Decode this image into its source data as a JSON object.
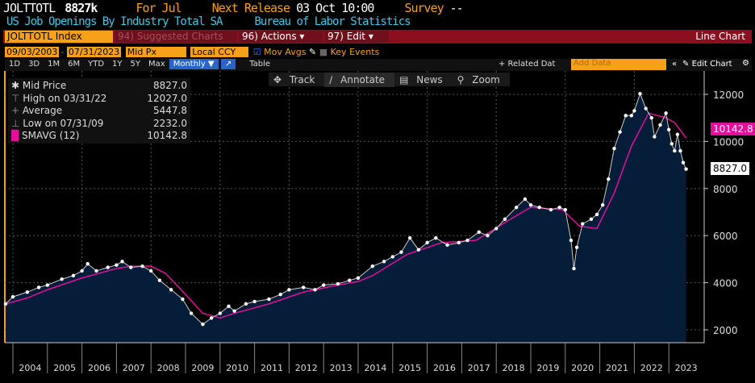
{
  "header": {
    "ticker": "JOLTTOTL",
    "last": "8827k",
    "for_label": "For Jul",
    "next_release_label": "Next Release",
    "next_release": "03 Oct 10:00",
    "survey_label": "Survey",
    "survey": "--",
    "description": "US Job Openings By Industry Total SA",
    "source": "Bureau of Labor Statistics"
  },
  "toolbar": {
    "security": "JOLTTOTL Index",
    "suggested": "94) Suggested Charts",
    "actions": "96) Actions ▾",
    "edit": "97) Edit ▾",
    "chart_type": "Line Chart"
  },
  "controls": {
    "start_date": "09/03/2003",
    "end_date": "07/31/2023",
    "price_field": "Mid Px",
    "currency": "Local CCY",
    "mov_avgs": "Mov Avgs",
    "key_events": "Key Events",
    "periods": [
      "1D",
      "3D",
      "1M",
      "6M",
      "YTD",
      "1Y",
      "5Y",
      "Max"
    ],
    "frequency": "Monthly ▼",
    "table": "Table",
    "related": "+ Related Dat",
    "add_data_placeholder": "Add Data",
    "collapse": "«",
    "edit_chart": "Edit Chart"
  },
  "chart_tools": {
    "track": "Track",
    "annotate": "Annotate",
    "news": "News",
    "zoom": "Zoom"
  },
  "legend": [
    {
      "label": "Mid Price",
      "value": "8827.0"
    },
    {
      "label": "High on 03/31/22",
      "value": "12027.0"
    },
    {
      "label": "Average",
      "value": "5447.8"
    },
    {
      "label": "Low on 07/31/09",
      "value": "2232.0"
    },
    {
      "label": "SMAVG (12)",
      "value": "10142.8"
    }
  ],
  "colors": {
    "price": "#ffffff",
    "sma": "#e0109a",
    "area": "#061d3a",
    "accent": "#f7a11a"
  },
  "chart_data": {
    "type": "area",
    "ylim": [
      1000,
      12800
    ],
    "yticks": [
      2000,
      4000,
      6000,
      8000,
      10000,
      12000
    ],
    "xticks": [
      "2004",
      "2005",
      "2006",
      "2007",
      "2008",
      "2009",
      "2010",
      "2011",
      "2012",
      "2013",
      "2014",
      "2015",
      "2016",
      "2017",
      "2018",
      "2019",
      "2020",
      "2021",
      "2022",
      "2023"
    ],
    "grid": true,
    "last_value_labels": [
      "10142.8",
      "8827.0"
    ],
    "series": [
      {
        "name": "Mid Price",
        "points": [
          [
            "2003-09",
            3100
          ],
          [
            "2004-01",
            3400
          ],
          [
            "2004-06",
            3600
          ],
          [
            "2004-10",
            3800
          ],
          [
            "2005-01",
            3900
          ],
          [
            "2005-06",
            4150
          ],
          [
            "2005-10",
            4300
          ],
          [
            "2006-01",
            4500
          ],
          [
            "2006-03",
            4800
          ],
          [
            "2006-06",
            4500
          ],
          [
            "2006-10",
            4650
          ],
          [
            "2007-01",
            4750
          ],
          [
            "2007-03",
            4900
          ],
          [
            "2007-06",
            4650
          ],
          [
            "2007-10",
            4700
          ],
          [
            "2008-01",
            4500
          ],
          [
            "2008-04",
            4100
          ],
          [
            "2008-08",
            3700
          ],
          [
            "2008-12",
            3300
          ],
          [
            "2009-03",
            2700
          ],
          [
            "2009-07",
            2232
          ],
          [
            "2009-10",
            2500
          ],
          [
            "2010-01",
            2700
          ],
          [
            "2010-04",
            3000
          ],
          [
            "2010-06",
            2800
          ],
          [
            "2010-10",
            3100
          ],
          [
            "2011-01",
            3200
          ],
          [
            "2011-06",
            3300
          ],
          [
            "2011-10",
            3500
          ],
          [
            "2012-01",
            3700
          ],
          [
            "2012-06",
            3800
          ],
          [
            "2012-10",
            3700
          ],
          [
            "2013-01",
            3900
          ],
          [
            "2013-06",
            3950
          ],
          [
            "2013-10",
            4100
          ],
          [
            "2014-01",
            4200
          ],
          [
            "2014-06",
            4700
          ],
          [
            "2014-10",
            4900
          ],
          [
            "2015-01",
            5100
          ],
          [
            "2015-04",
            5300
          ],
          [
            "2015-07",
            5900
          ],
          [
            "2015-10",
            5400
          ],
          [
            "2016-01",
            5700
          ],
          [
            "2016-04",
            5900
          ],
          [
            "2016-08",
            5600
          ],
          [
            "2016-12",
            5700
          ],
          [
            "2017-03",
            5800
          ],
          [
            "2017-07",
            6150
          ],
          [
            "2017-10",
            6000
          ],
          [
            "2018-01",
            6300
          ],
          [
            "2018-04",
            6700
          ],
          [
            "2018-08",
            7200
          ],
          [
            "2018-11",
            7550
          ],
          [
            "2019-01",
            7300
          ],
          [
            "2019-04",
            7200
          ],
          [
            "2019-08",
            7100
          ],
          [
            "2019-11",
            7200
          ],
          [
            "2020-01",
            7100
          ],
          [
            "2020-03",
            5800
          ],
          [
            "2020-04",
            4600
          ],
          [
            "2020-05",
            5500
          ],
          [
            "2020-07",
            6500
          ],
          [
            "2020-10",
            6700
          ],
          [
            "2020-12",
            6900
          ],
          [
            "2021-02",
            7300
          ],
          [
            "2021-04",
            8400
          ],
          [
            "2021-06",
            9700
          ],
          [
            "2021-08",
            10400
          ],
          [
            "2021-10",
            11100
          ],
          [
            "2021-12",
            11100
          ],
          [
            "2022-01",
            11300
          ],
          [
            "2022-03",
            12027
          ],
          [
            "2022-05",
            11400
          ],
          [
            "2022-07",
            11000
          ],
          [
            "2022-08",
            10200
          ],
          [
            "2022-10",
            10700
          ],
          [
            "2022-12",
            11200
          ],
          [
            "2023-01",
            10500
          ],
          [
            "2023-02",
            9900
          ],
          [
            "2023-03",
            9600
          ],
          [
            "2023-04",
            10300
          ],
          [
            "2023-05",
            9600
          ],
          [
            "2023-06",
            9100
          ],
          [
            "2023-07",
            8827
          ]
        ]
      },
      {
        "name": "SMAVG (12)",
        "points": [
          [
            "2003-09",
            3100
          ],
          [
            "2004-06",
            3350
          ],
          [
            "2005-01",
            3700
          ],
          [
            "2006-01",
            4200
          ],
          [
            "2007-01",
            4600
          ],
          [
            "2007-06",
            4700
          ],
          [
            "2008-01",
            4700
          ],
          [
            "2008-06",
            4400
          ],
          [
            "2009-01",
            3500
          ],
          [
            "2009-07",
            2700
          ],
          [
            "2010-01",
            2500
          ],
          [
            "2010-06",
            2700
          ],
          [
            "2011-06",
            3100
          ],
          [
            "2012-06",
            3600
          ],
          [
            "2013-06",
            3900
          ],
          [
            "2014-01",
            4050
          ],
          [
            "2014-06",
            4300
          ],
          [
            "2015-06",
            5200
          ],
          [
            "2016-06",
            5700
          ],
          [
            "2017-06",
            5800
          ],
          [
            "2018-06",
            6700
          ],
          [
            "2019-01",
            7200
          ],
          [
            "2019-12",
            7100
          ],
          [
            "2020-06",
            6400
          ],
          [
            "2020-12",
            6300
          ],
          [
            "2021-06",
            7800
          ],
          [
            "2021-12",
            9800
          ],
          [
            "2022-06",
            11200
          ],
          [
            "2022-12",
            11000
          ],
          [
            "2023-03",
            10800
          ],
          [
            "2023-07",
            10143
          ]
        ]
      }
    ]
  }
}
